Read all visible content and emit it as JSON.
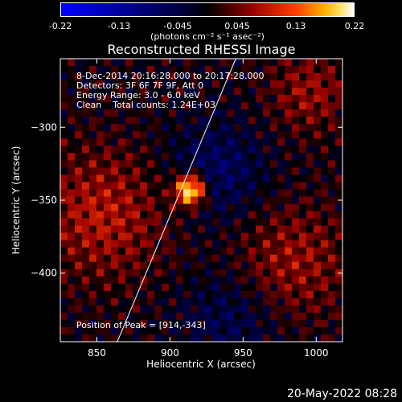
{
  "colorbar": {
    "ticks": [
      "-0.22",
      "-0.13",
      "-0.045",
      "0.045",
      "0.13",
      "0.22"
    ],
    "units": "(photons cm⁻² s⁻¹ asec⁻²)"
  },
  "header": {
    "title": "Reconstructed RHESSI Image"
  },
  "info": {
    "time": "8-Dec-2014 20:16:28.000 to 20:17:28.000",
    "detectors": "Detectors: 3F 6F 7F 9F, Att 0",
    "energy": "Energy Range: 3.0 - 6.0 keV",
    "clean": "Clean    Total counts: 1.24E+03",
    "peak": "Position of Peak = [914,-343]"
  },
  "footer": {
    "timestamp": "20-May-2022 08:28"
  },
  "chart_data": {
    "type": "heatmap",
    "title": "Reconstructed RHESSI Image",
    "xlabel": "Heliocentric X (arcsec)",
    "ylabel": "Heliocentric Y (arcsec)",
    "xlim": [
      825,
      1018
    ],
    "ylim": [
      -447,
      -253
    ],
    "x_ticks": [
      850,
      900,
      950,
      1000
    ],
    "y_ticks": [
      -300,
      -350,
      -400
    ],
    "x_tick_labels": [
      "850",
      "900",
      "950",
      "1000"
    ],
    "y_tick_labels": [
      "−300",
      "−350",
      "−400"
    ],
    "colorbar_range": [
      -0.22,
      0.22
    ],
    "peak": [
      914,
      -343
    ],
    "limb_line": [
      [
        864,
        -447
      ],
      [
        945,
        -253
      ]
    ]
  }
}
